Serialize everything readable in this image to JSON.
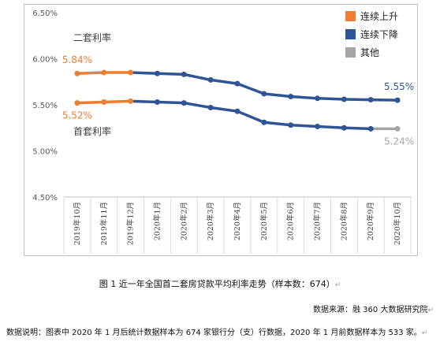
{
  "caption": "图 1  近一年全国首二套房贷款平均利率走势（样本数：674）",
  "source": "数据来源：融 360 大数据研究院",
  "note": "数据说明：图表中 2020 年 1 月后统计数据样本为 674 家银行分（支）行数据，2020 年 1 月前数据样本为 533 家。",
  "chart_data": {
    "type": "line",
    "categories": [
      "2019年10月",
      "2019年11月",
      "2019年12月",
      "2020年1月",
      "2020年2月",
      "2020年3月",
      "2020年4月",
      "2020年5月",
      "2020年6月",
      "2020年7月",
      "2020年8月",
      "2020年9月",
      "2020年10月"
    ],
    "ylim": [
      4.5,
      6.5
    ],
    "yticks": [
      4.5,
      5.0,
      5.5,
      6.0,
      6.5
    ],
    "ytick_labels": [
      "4.50%",
      "5.00%",
      "5.50%",
      "6.00%",
      "6.50%"
    ],
    "series": [
      {
        "name": "二套利率",
        "values": [
          5.84,
          5.85,
          5.85,
          5.84,
          5.83,
          5.77,
          5.73,
          5.62,
          5.59,
          5.57,
          5.56,
          5.555,
          5.55
        ],
        "phases": [
          "up",
          "up",
          "up",
          "down",
          "down",
          "down",
          "down",
          "down",
          "down",
          "down",
          "down",
          "down",
          "down"
        ]
      },
      {
        "name": "首套利率",
        "values": [
          5.52,
          5.53,
          5.54,
          5.53,
          5.52,
          5.47,
          5.43,
          5.31,
          5.28,
          5.265,
          5.25,
          5.24,
          5.24
        ],
        "phases": [
          "up",
          "up",
          "up",
          "down",
          "down",
          "down",
          "down",
          "down",
          "down",
          "down",
          "down",
          "down",
          "other"
        ]
      }
    ],
    "data_labels": [
      {
        "series": 0,
        "index": 0,
        "text": "5.84%",
        "phase": "up"
      },
      {
        "series": 1,
        "index": 0,
        "text": "5.52%",
        "phase": "up"
      },
      {
        "series": 0,
        "index": 12,
        "text": "5.55%",
        "phase": "down"
      },
      {
        "series": 1,
        "index": 12,
        "text": "5.24%",
        "phase": "other"
      }
    ],
    "legend": [
      {
        "key": "up",
        "label": "连续上升",
        "color": "#ED7D31"
      },
      {
        "key": "down",
        "label": "连续下降",
        "color": "#2F5597"
      },
      {
        "key": "other",
        "label": "其他",
        "color": "#A5A5A5"
      }
    ],
    "legend_position": "top-right",
    "grid": false
  }
}
